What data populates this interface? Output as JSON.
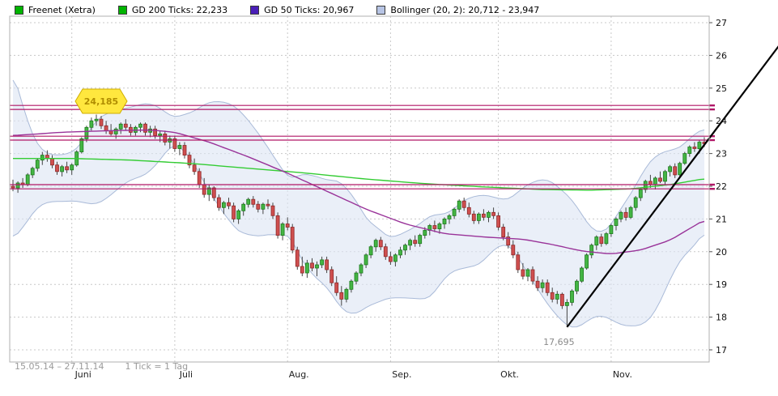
{
  "legend": {
    "items": [
      {
        "label": "Freenet (Xetra)",
        "color": "#00b400"
      },
      {
        "label": "GD 200 Ticks: 22,233",
        "color": "#00b400"
      },
      {
        "label": "GD 50 Ticks: 20,967",
        "color": "#4a1fb8"
      },
      {
        "label": "Bollinger (20, 2): 20,712 - 23,947",
        "color": "#b7c4e4"
      }
    ]
  },
  "footer": {
    "range": "15.05.14 – 27.11.14",
    "tick": "1 Tick = 1 Tag"
  },
  "chart_data": {
    "type": "candlestick",
    "title": "Freenet (Xetra)",
    "ylim": [
      17,
      27
    ],
    "y_ticks": [
      17,
      18,
      19,
      20,
      21,
      22,
      23,
      24,
      25,
      26,
      27
    ],
    "x_tick_labels": [
      "Juni",
      "Juli",
      "Aug.",
      "Sep.",
      "Okt.",
      "Nov."
    ],
    "x_tick_indices": [
      12,
      33,
      56,
      77,
      99,
      122
    ],
    "grid": true,
    "legend_position": "top",
    "colors": {
      "up_fill": "#44b544",
      "up_stroke": "#1c7a1c",
      "down_fill": "#cf4f4f",
      "down_stroke": "#8e2a2a",
      "wick": "#444444",
      "gd200": "#33cc33",
      "gd50": "#993399",
      "sr": "#b01666",
      "trend": "#000000",
      "band_fill": "#dce5f3",
      "band_edge": "#a9bad8",
      "grid": "#c8c8c8",
      "frame": "#b0b0b0",
      "marker_fill": "#ffe73e",
      "marker_stroke": "#cfae00",
      "marker_text": "#b08d00",
      "axis_text": "#111111",
      "month_text": "#222222",
      "low_label_text": "#8a8a8a"
    },
    "candles_ohlc": [
      [
        22.0,
        22.2,
        21.85,
        21.95
      ],
      [
        21.95,
        22.15,
        21.8,
        22.1
      ],
      [
        22.1,
        22.25,
        21.95,
        22.05
      ],
      [
        22.05,
        22.4,
        22.0,
        22.35
      ],
      [
        22.35,
        22.6,
        22.25,
        22.55
      ],
      [
        22.55,
        22.85,
        22.45,
        22.8
      ],
      [
        22.8,
        23.05,
        22.65,
        22.95
      ],
      [
        22.95,
        23.1,
        22.75,
        22.85
      ],
      [
        22.85,
        22.95,
        22.55,
        22.65
      ],
      [
        22.65,
        22.75,
        22.35,
        22.45
      ],
      [
        22.45,
        22.65,
        22.3,
        22.6
      ],
      [
        22.6,
        22.75,
        22.4,
        22.5
      ],
      [
        22.5,
        22.7,
        22.35,
        22.65
      ],
      [
        22.65,
        23.1,
        22.6,
        23.05
      ],
      [
        23.05,
        23.5,
        23.0,
        23.45
      ],
      [
        23.45,
        23.85,
        23.35,
        23.8
      ],
      [
        23.8,
        24.1,
        23.7,
        24.0
      ],
      [
        24.0,
        24.19,
        23.85,
        24.05
      ],
      [
        24.05,
        24.15,
        23.75,
        23.85
      ],
      [
        23.85,
        24.0,
        23.6,
        23.7
      ],
      [
        23.7,
        23.9,
        23.55,
        23.6
      ],
      [
        23.6,
        23.8,
        23.45,
        23.75
      ],
      [
        23.75,
        23.95,
        23.6,
        23.9
      ],
      [
        23.9,
        24.05,
        23.7,
        23.8
      ],
      [
        23.8,
        23.9,
        23.55,
        23.65
      ],
      [
        23.65,
        23.85,
        23.55,
        23.8
      ],
      [
        23.8,
        23.95,
        23.65,
        23.9
      ],
      [
        23.9,
        23.95,
        23.55,
        23.65
      ],
      [
        23.65,
        23.85,
        23.5,
        23.75
      ],
      [
        23.75,
        23.85,
        23.45,
        23.55
      ],
      [
        23.55,
        23.7,
        23.35,
        23.6
      ],
      [
        23.6,
        23.7,
        23.25,
        23.35
      ],
      [
        23.35,
        23.55,
        23.15,
        23.45
      ],
      [
        23.45,
        23.55,
        23.05,
        23.15
      ],
      [
        23.15,
        23.35,
        22.95,
        23.25
      ],
      [
        23.25,
        23.35,
        22.85,
        22.95
      ],
      [
        22.95,
        23.05,
        22.55,
        22.65
      ],
      [
        22.65,
        22.85,
        22.35,
        22.45
      ],
      [
        22.45,
        22.55,
        21.95,
        22.05
      ],
      [
        22.05,
        22.25,
        21.65,
        21.75
      ],
      [
        21.75,
        22.05,
        21.55,
        21.95
      ],
      [
        21.95,
        22.0,
        21.55,
        21.65
      ],
      [
        21.65,
        21.75,
        21.25,
        21.35
      ],
      [
        21.35,
        21.55,
        21.15,
        21.5
      ],
      [
        21.5,
        21.65,
        21.3,
        21.4
      ],
      [
        21.4,
        21.5,
        20.9,
        21.0
      ],
      [
        21.0,
        21.3,
        20.85,
        21.25
      ],
      [
        21.25,
        21.5,
        21.1,
        21.45
      ],
      [
        21.45,
        21.65,
        21.35,
        21.6
      ],
      [
        21.6,
        21.7,
        21.35,
        21.45
      ],
      [
        21.45,
        21.55,
        21.2,
        21.3
      ],
      [
        21.3,
        21.5,
        21.15,
        21.45
      ],
      [
        21.45,
        21.6,
        21.3,
        21.4
      ],
      [
        21.4,
        21.5,
        21.0,
        21.1
      ],
      [
        21.1,
        21.2,
        20.4,
        20.5
      ],
      [
        20.5,
        20.9,
        20.35,
        20.85
      ],
      [
        20.85,
        21.05,
        20.65,
        20.75
      ],
      [
        20.75,
        20.85,
        19.95,
        20.05
      ],
      [
        20.05,
        20.15,
        19.45,
        19.55
      ],
      [
        19.55,
        19.85,
        19.25,
        19.35
      ],
      [
        19.35,
        19.75,
        19.2,
        19.65
      ],
      [
        19.65,
        19.8,
        19.4,
        19.5
      ],
      [
        19.5,
        19.7,
        19.25,
        19.6
      ],
      [
        19.6,
        19.85,
        19.5,
        19.75
      ],
      [
        19.75,
        19.85,
        19.35,
        19.45
      ],
      [
        19.45,
        19.55,
        18.95,
        19.05
      ],
      [
        19.05,
        19.25,
        18.65,
        18.75
      ],
      [
        18.75,
        18.95,
        18.35,
        18.55
      ],
      [
        18.55,
        18.9,
        18.45,
        18.85
      ],
      [
        18.85,
        19.15,
        18.75,
        19.1
      ],
      [
        19.1,
        19.4,
        19.0,
        19.35
      ],
      [
        19.35,
        19.65,
        19.25,
        19.6
      ],
      [
        19.6,
        19.95,
        19.5,
        19.9
      ],
      [
        19.9,
        20.2,
        19.8,
        20.15
      ],
      [
        20.15,
        20.4,
        20.0,
        20.35
      ],
      [
        20.35,
        20.45,
        20.05,
        20.15
      ],
      [
        20.15,
        20.25,
        19.75,
        19.85
      ],
      [
        19.85,
        20.0,
        19.6,
        19.7
      ],
      [
        19.7,
        19.95,
        19.55,
        19.9
      ],
      [
        19.9,
        20.15,
        19.8,
        20.05
      ],
      [
        20.05,
        20.25,
        19.9,
        20.2
      ],
      [
        20.2,
        20.4,
        20.05,
        20.35
      ],
      [
        20.35,
        20.5,
        20.15,
        20.25
      ],
      [
        20.25,
        20.55,
        20.15,
        20.5
      ],
      [
        20.5,
        20.75,
        20.4,
        20.65
      ],
      [
        20.65,
        20.85,
        20.5,
        20.8
      ],
      [
        20.8,
        20.95,
        20.6,
        20.7
      ],
      [
        20.7,
        20.9,
        20.55,
        20.85
      ],
      [
        20.85,
        21.05,
        20.7,
        21.0
      ],
      [
        21.0,
        21.15,
        20.85,
        21.1
      ],
      [
        21.1,
        21.35,
        21.0,
        21.3
      ],
      [
        21.3,
        21.6,
        21.2,
        21.55
      ],
      [
        21.55,
        21.65,
        21.25,
        21.35
      ],
      [
        21.35,
        21.5,
        21.05,
        21.15
      ],
      [
        21.15,
        21.25,
        20.85,
        20.95
      ],
      [
        20.95,
        21.2,
        20.85,
        21.15
      ],
      [
        21.15,
        21.3,
        20.95,
        21.05
      ],
      [
        21.05,
        21.25,
        20.9,
        21.2
      ],
      [
        21.2,
        21.35,
        21.0,
        21.1
      ],
      [
        21.1,
        21.2,
        20.65,
        20.75
      ],
      [
        20.75,
        20.85,
        20.35,
        20.45
      ],
      [
        20.45,
        20.6,
        20.1,
        20.2
      ],
      [
        20.2,
        20.35,
        19.8,
        19.9
      ],
      [
        19.9,
        20.0,
        19.35,
        19.45
      ],
      [
        19.45,
        19.65,
        19.15,
        19.25
      ],
      [
        19.25,
        19.5,
        19.1,
        19.45
      ],
      [
        19.45,
        19.55,
        19.0,
        19.1
      ],
      [
        19.1,
        19.25,
        18.8,
        18.9
      ],
      [
        18.9,
        19.15,
        18.75,
        19.05
      ],
      [
        19.05,
        19.15,
        18.65,
        18.75
      ],
      [
        18.75,
        18.9,
        18.45,
        18.55
      ],
      [
        18.55,
        18.8,
        18.4,
        18.7
      ],
      [
        18.7,
        18.75,
        18.25,
        18.35
      ],
      [
        18.35,
        18.55,
        17.7,
        18.45
      ],
      [
        18.45,
        18.85,
        18.35,
        18.8
      ],
      [
        18.8,
        19.15,
        18.7,
        19.1
      ],
      [
        19.1,
        19.55,
        19.05,
        19.5
      ],
      [
        19.5,
        19.95,
        19.45,
        19.9
      ],
      [
        19.9,
        20.25,
        19.8,
        20.2
      ],
      [
        20.2,
        20.5,
        20.05,
        20.45
      ],
      [
        20.45,
        20.55,
        20.15,
        20.25
      ],
      [
        20.25,
        20.6,
        20.2,
        20.55
      ],
      [
        20.55,
        20.85,
        20.45,
        20.8
      ],
      [
        20.8,
        21.05,
        20.65,
        21.0
      ],
      [
        21.0,
        21.25,
        20.9,
        21.2
      ],
      [
        21.2,
        21.35,
        20.95,
        21.05
      ],
      [
        21.05,
        21.4,
        21.0,
        21.35
      ],
      [
        21.35,
        21.7,
        21.25,
        21.65
      ],
      [
        21.65,
        21.95,
        21.55,
        21.9
      ],
      [
        21.9,
        22.2,
        21.8,
        22.15
      ],
      [
        22.15,
        22.35,
        21.95,
        22.05
      ],
      [
        22.05,
        22.3,
        21.9,
        22.25
      ],
      [
        22.25,
        22.45,
        22.1,
        22.15
      ],
      [
        22.15,
        22.5,
        22.05,
        22.45
      ],
      [
        22.45,
        22.65,
        22.3,
        22.6
      ],
      [
        22.6,
        22.7,
        22.25,
        22.35
      ],
      [
        22.35,
        22.75,
        22.3,
        22.7
      ],
      [
        22.7,
        23.05,
        22.65,
        23.0
      ],
      [
        23.0,
        23.25,
        22.9,
        23.2
      ],
      [
        23.2,
        23.35,
        23.05,
        23.15
      ],
      [
        23.15,
        23.4,
        23.0,
        23.35
      ],
      [
        23.35,
        23.5,
        23.2,
        23.3
      ]
    ],
    "series": [
      {
        "name": "GD 200 Ticks",
        "value_label": "22,233",
        "color_key": "gd200",
        "points": [
          [
            0,
            22.85
          ],
          [
            12,
            22.85
          ],
          [
            24,
            22.8
          ],
          [
            36,
            22.7
          ],
          [
            48,
            22.55
          ],
          [
            60,
            22.4
          ],
          [
            72,
            22.22
          ],
          [
            84,
            22.08
          ],
          [
            96,
            21.98
          ],
          [
            108,
            21.9
          ],
          [
            118,
            21.88
          ],
          [
            126,
            21.92
          ],
          [
            134,
            22.05
          ],
          [
            141,
            22.23
          ]
        ]
      },
      {
        "name": "GD 50 Ticks",
        "value_label": "20,967",
        "color_key": "gd50",
        "points": [
          [
            0,
            23.55
          ],
          [
            10,
            23.65
          ],
          [
            20,
            23.7
          ],
          [
            28,
            23.72
          ],
          [
            33,
            23.65
          ],
          [
            40,
            23.35
          ],
          [
            48,
            22.9
          ],
          [
            56,
            22.4
          ],
          [
            64,
            21.85
          ],
          [
            72,
            21.3
          ],
          [
            80,
            20.85
          ],
          [
            88,
            20.55
          ],
          [
            96,
            20.45
          ],
          [
            104,
            20.38
          ],
          [
            110,
            20.22
          ],
          [
            116,
            20.02
          ],
          [
            122,
            19.93
          ],
          [
            128,
            20.05
          ],
          [
            134,
            20.35
          ],
          [
            141,
            20.97
          ]
        ]
      }
    ],
    "bollinger": {
      "name": "Bollinger (20, 2)",
      "value_label": "20,712 - 23,947",
      "window": 20,
      "mult": 2,
      "pre_closes": [
        25.6,
        25.8,
        25.4,
        25.0,
        24.5,
        24.0,
        23.6,
        23.2,
        22.9,
        22.6,
        22.4,
        22.2,
        22.1,
        22.0,
        21.9,
        21.85,
        21.8,
        21.9,
        21.95,
        22.0
      ]
    },
    "sr_lines": [
      24.47,
      24.35,
      23.53,
      23.41,
      22.05,
      21.92
    ],
    "trend_line": {
      "from_index": 113,
      "from_price": 17.695,
      "to_index": 157,
      "to_price": 26.45
    },
    "annotations": [
      {
        "type": "high-marker",
        "text": "24,185",
        "index": 18,
        "price": 24.6
      },
      {
        "type": "low-label",
        "text": "17,695",
        "index": 113,
        "price": 17.45
      }
    ]
  }
}
